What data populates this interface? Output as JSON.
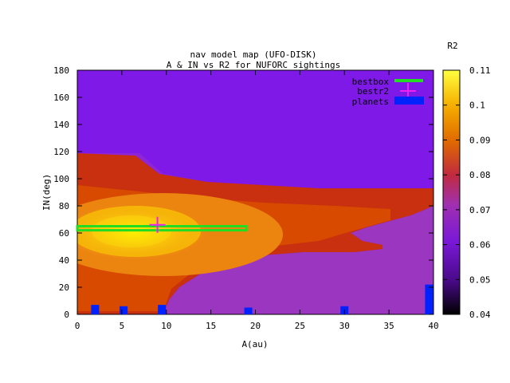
{
  "chart_data": {
    "type": "heatmap",
    "title_line1": "nav model map (UFO-DISK)",
    "title_line2": "A & IN vs R2 for NUFORC sightings",
    "xlabel": "A(au)",
    "ylabel": "IN(deg)",
    "xlim": [
      0,
      40
    ],
    "ylim": [
      0,
      180
    ],
    "x_ticks": [
      "0",
      "5",
      "10",
      "15",
      "20",
      "25",
      "30",
      "35",
      "40"
    ],
    "y_ticks": [
      "0",
      "20",
      "40",
      "60",
      "80",
      "100",
      "120",
      "140",
      "160",
      "180"
    ],
    "colorbar": {
      "label": "R2",
      "range": [
        0.04,
        0.11
      ],
      "ticks": [
        "0.04",
        "0.05",
        "0.06",
        "0.07",
        "0.08",
        "0.09",
        "0.1",
        "0.11"
      ]
    },
    "legend": {
      "placement": "top-right",
      "entries": [
        {
          "name": "bestbox",
          "color": "#22dd22"
        },
        {
          "name": "bestr2",
          "color": "#ee22ee"
        },
        {
          "name": "planets",
          "color": "#0022ff"
        }
      ]
    },
    "bestbox": {
      "a_range": [
        0,
        19
      ],
      "in_range": [
        62,
        65
      ]
    },
    "bestr2": {
      "a": 9,
      "in": 66
    },
    "planets": [
      {
        "a": 2,
        "in_range": [
          0,
          7
        ]
      },
      {
        "a": 5.2,
        "in_range": [
          0,
          6
        ]
      },
      {
        "a": 9.5,
        "in_range": [
          0,
          7
        ]
      },
      {
        "a": 19.2,
        "in_range": [
          0,
          5
        ]
      },
      {
        "a": 30,
        "in_range": [
          0,
          6
        ]
      },
      {
        "a": 39.5,
        "in_range": [
          0,
          22
        ]
      }
    ],
    "regions": [
      {
        "name": "background",
        "r2": 0.058,
        "color": "#7f19e8"
      },
      {
        "name": "upper-band",
        "r2": 0.061,
        "color": "#8e25d6"
      },
      {
        "name": "lower-right",
        "r2": 0.063,
        "color": "#9a36c0"
      },
      {
        "name": "outer-red",
        "r2": 0.079,
        "color": "#c8300f"
      },
      {
        "name": "inner-red",
        "r2": 0.082,
        "color": "#d84a00"
      },
      {
        "name": "orange",
        "r2": 0.088,
        "color": "#ec8410"
      },
      {
        "name": "yellow-orange",
        "r2": 0.096,
        "color": "#f7bb06"
      },
      {
        "name": "yellow-peak",
        "r2": 0.104,
        "color": "#fce90c"
      }
    ]
  }
}
